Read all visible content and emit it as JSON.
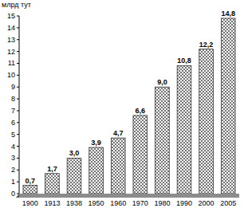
{
  "chart_data": {
    "type": "bar",
    "y_label": "млрд тут",
    "categories": [
      "1900",
      "1913",
      "1938",
      "1950",
      "1960",
      "1970",
      "1980",
      "1990",
      "2000",
      "2005"
    ],
    "values": [
      0.7,
      1.7,
      3.0,
      3.9,
      4.7,
      6.6,
      9.0,
      10.8,
      12.2,
      14.8
    ],
    "value_labels": [
      "0,7",
      "1,7",
      "3,0",
      "3,9",
      "4,7",
      "6,6",
      "9,0",
      "10,8",
      "12,2",
      "14,8"
    ],
    "color": "#333333",
    "data_labels": true,
    "ylim": [
      0,
      15
    ],
    "yticks": [
      0,
      1,
      2,
      3,
      4,
      5,
      6,
      7,
      8,
      9,
      10,
      11,
      12,
      13,
      14,
      15
    ]
  }
}
